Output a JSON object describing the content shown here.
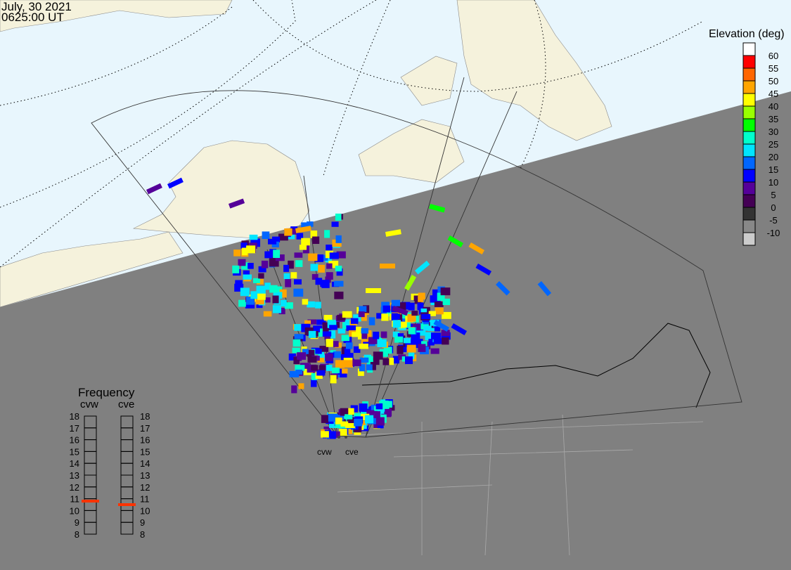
{
  "header": {
    "date": "July, 30 2021",
    "time": "0625:00 UT"
  },
  "elevation_legend": {
    "title": "Elevation (deg)",
    "levels": [
      "60",
      "55",
      "50",
      "45",
      "40",
      "35",
      "30",
      "25",
      "20",
      "15",
      "10",
      "5",
      "0",
      "-5",
      "-10"
    ],
    "colors": [
      "#ffffff",
      "#ff0000",
      "#ff6600",
      "#ffa500",
      "#ffff00",
      "#99ff00",
      "#00ff00",
      "#00ffcc",
      "#00e5ff",
      "#0066ff",
      "#0000ff",
      "#550099",
      "#440055",
      "#333333",
      "#888888",
      "#cccccc"
    ]
  },
  "frequency": {
    "title": "Frequency",
    "radars": [
      {
        "name": "cvw",
        "value_mhz": 10.8
      },
      {
        "name": "cve",
        "value_mhz": 10.5
      }
    ],
    "scale": [
      "18",
      "17",
      "16",
      "15",
      "14",
      "13",
      "12",
      "11",
      "10",
      "9",
      "8"
    ],
    "marker_color": "#ff3300"
  },
  "radar_labels": [
    "cvw",
    "cve"
  ],
  "colors": {
    "day": "#e8f6fd",
    "night": "#808080",
    "land_day": "#f5f2dc",
    "land_night": "#808080"
  }
}
